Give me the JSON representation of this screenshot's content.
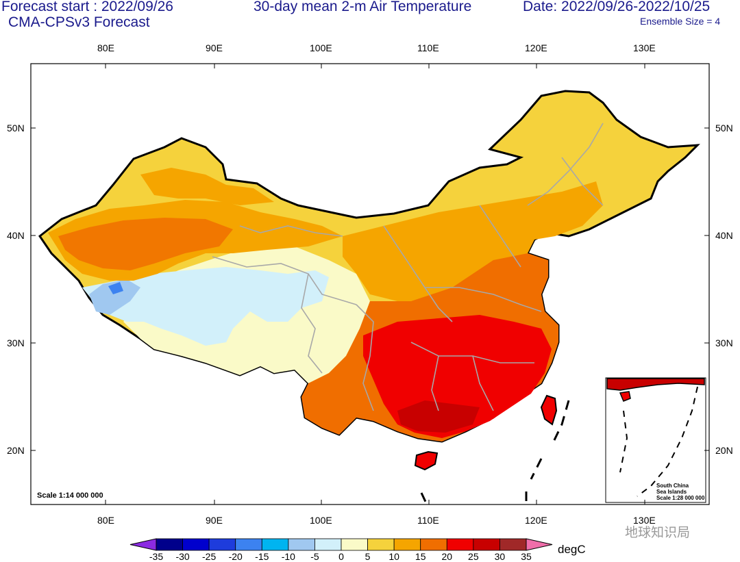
{
  "header": {
    "forecast_start": "Forecast start : 2022/09/26",
    "model": "CMA-CPSv3 Forecast",
    "title": "30-day mean 2-m Air Temperature",
    "date_range": "Date: 2022/09/26-2022/10/25",
    "ensemble": "Ensemble Size = 4"
  },
  "axes": {
    "lon_labels": [
      "80E",
      "90E",
      "100E",
      "110E",
      "120E",
      "130E"
    ],
    "lat_labels": [
      "50N",
      "40N",
      "30N",
      "20N"
    ]
  },
  "map": {
    "scale_note": "Scale 1:14 000 000",
    "inset": {
      "line1": "South China",
      "line2": "Sea Islands",
      "line3": "Scale 1:28 000 000"
    }
  },
  "colorbar": {
    "units": "degC",
    "labels": [
      "-35",
      "-30",
      "-25",
      "-20",
      "-15",
      "-10",
      "-5",
      "0",
      "5",
      "10",
      "15",
      "20",
      "25",
      "30",
      "35"
    ],
    "colors": [
      "#8b2be2",
      "#00008b",
      "#0000cd",
      "#1e3cdc",
      "#3c82f0",
      "#00b4f0",
      "#a0c8f0",
      "#d2f0fa",
      "#fafac8",
      "#f5d23c",
      "#f5a500",
      "#f06e00",
      "#f00000",
      "#c80000",
      "#a02828",
      "#f06eaa"
    ]
  },
  "watermark": "地球知识局"
}
